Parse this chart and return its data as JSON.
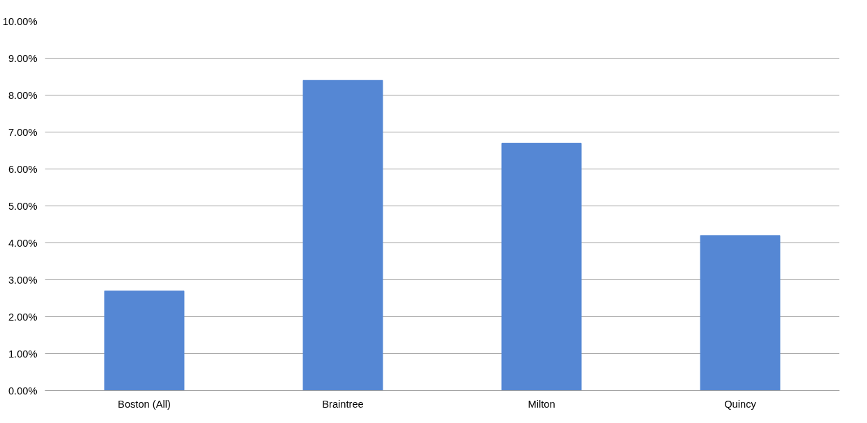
{
  "chart_data": {
    "type": "bar",
    "categories": [
      "Boston (All)",
      "Braintree",
      "Milton",
      "Quincy"
    ],
    "values": [
      2.7,
      8.4,
      6.7,
      4.2
    ],
    "color": "#5587d4",
    "ylim": [
      0,
      10
    ],
    "yticks": [
      {
        "value": 0,
        "label": "0.00%"
      },
      {
        "value": 1,
        "label": "1.00%"
      },
      {
        "value": 2,
        "label": "2.00%"
      },
      {
        "value": 3,
        "label": "3.00%"
      },
      {
        "value": 4,
        "label": "4.00%"
      },
      {
        "value": 5,
        "label": "5.00%"
      },
      {
        "value": 6,
        "label": "6.00%"
      },
      {
        "value": 7,
        "label": "7.00%"
      },
      {
        "value": 8,
        "label": "8.00%"
      },
      {
        "value": 9,
        "label": "9.00%"
      },
      {
        "value": 10,
        "label": "10.00%"
      }
    ],
    "grid": "y"
  }
}
